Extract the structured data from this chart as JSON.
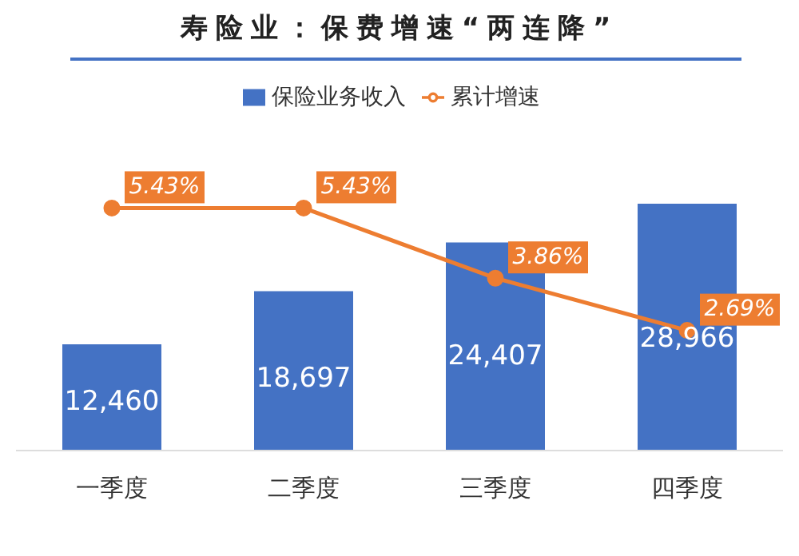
{
  "chart_data": {
    "type": "bar",
    "title": "寿险业：保费增速“两连降”",
    "categories": [
      "一季度",
      "二季度",
      "三季度",
      "四季度"
    ],
    "series": [
      {
        "name": "保险业务收入",
        "color": "#4472c4",
        "values": [
          12460,
          18697,
          24407,
          28966
        ],
        "value_labels": [
          "12,460",
          "18,697",
          "24,407",
          "28,966"
        ]
      },
      {
        "name": "累计增速",
        "type": "line",
        "axis": "y2",
        "color": "#ed7d31",
        "marker": "circle",
        "values": [
          5.43,
          5.43,
          3.86,
          2.69
        ],
        "value_labels": [
          "5.43%",
          "5.43%",
          "3.86%",
          "2.69%"
        ]
      }
    ],
    "tick_labels": "x",
    "legend": "top",
    "grid": false
  }
}
